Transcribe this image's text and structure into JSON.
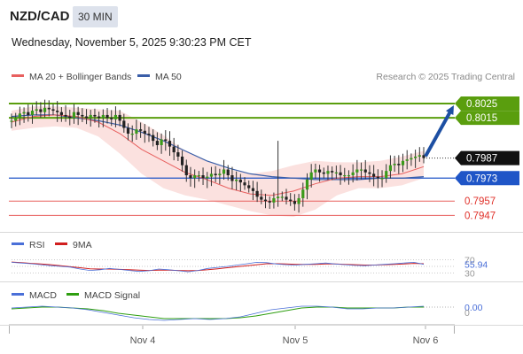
{
  "header": {
    "symbol": "NZD/CAD",
    "interval": "30 MIN",
    "datetime": "Wednesday, November 5, 2025 9:30:23 PM CET"
  },
  "legend": {
    "ma20_label": "MA 20 + Bollinger Bands",
    "ma50_label": "MA 50",
    "ma20_color": "#e8605f",
    "ma50_color": "#3a5ea8",
    "credit": "Research © 2025 Trading Central"
  },
  "rsi_panel": {
    "rsi_label": "RSI",
    "ma_label": "9MA",
    "rsi_color": "#4a6fd8",
    "ma_color": "#d11f1f",
    "value": "55.94",
    "levels": [
      "70",
      "30"
    ]
  },
  "macd_panel": {
    "macd_label": "MACD",
    "signal_label": "MACD Signal",
    "macd_color": "#4a6fd8",
    "signal_color": "#2e9e10",
    "value": "0.00",
    "zero": "0"
  },
  "levels": [
    {
      "price": "0.8025",
      "kind": "resistance",
      "color": "#5a9e0e"
    },
    {
      "price": "0.8015",
      "kind": "resistance",
      "color": "#5a9e0e"
    },
    {
      "price": "0.7987",
      "kind": "last",
      "color": "#111111"
    },
    {
      "price": "0.7973",
      "kind": "pivot",
      "color": "#1f55c7"
    },
    {
      "price": "0.7957",
      "kind": "support",
      "color": "#e8605f"
    },
    {
      "price": "0.7947",
      "kind": "support",
      "color": "#e8605f"
    }
  ],
  "x_axis": {
    "labels": [
      "Nov 4",
      "Nov 5",
      "Nov 6"
    ]
  },
  "chart_data": {
    "type": "candlestick",
    "price_range": [
      0.7938,
      0.8033
    ],
    "close_path": [
      0.8013,
      0.8015,
      0.8018,
      0.8019,
      0.8017,
      0.802,
      0.8021,
      0.8019,
      0.8022,
      0.8021,
      0.802,
      0.8019,
      0.8017,
      0.8016,
      0.8015,
      0.8019,
      0.8017,
      0.8016,
      0.8015,
      0.8017,
      0.8016,
      0.8015,
      0.8017,
      0.8015,
      0.8014,
      0.8017,
      0.8013,
      0.8008,
      0.8004,
      0.8004,
      0.8007,
      0.8006,
      0.8004,
      0.8003,
      0.7999,
      0.7996,
      0.8,
      0.7999,
      0.7995,
      0.7991,
      0.7988,
      0.7982,
      0.7975,
      0.7973,
      0.7975,
      0.7975,
      0.7973,
      0.7974,
      0.7976,
      0.7975,
      0.7976,
      0.7979,
      0.7975,
      0.7971,
      0.7972,
      0.797,
      0.7968,
      0.7966,
      0.7964,
      0.796,
      0.7958,
      0.7957,
      0.7956,
      0.7959,
      0.796,
      0.796,
      0.7958,
      0.7957,
      0.7955,
      0.7959,
      0.7965,
      0.7972,
      0.7977,
      0.7979,
      0.7977,
      0.7976,
      0.7978,
      0.7977,
      0.7977,
      0.7975,
      0.7975,
      0.7975,
      0.7977,
      0.7979,
      0.7979,
      0.7977,
      0.7976,
      0.7974,
      0.7973,
      0.7973,
      0.7978,
      0.7982,
      0.7983,
      0.7982,
      0.7985,
      0.7986,
      0.7987,
      0.7988,
      0.7989,
      0.7987
    ],
    "spike": {
      "index": 64,
      "high": 0.7999,
      "low": 0.7953
    },
    "ma20": [
      0.8012,
      0.8016,
      0.8017,
      0.8016,
      0.8012,
      0.8004,
      0.7993,
      0.7985,
      0.7977,
      0.7972,
      0.7966,
      0.7962,
      0.7961,
      0.7964,
      0.7969,
      0.7973,
      0.7974,
      0.7974,
      0.7976,
      0.7981
    ],
    "ma50": [
      0.8016,
      0.8017,
      0.8017,
      0.8015,
      0.8013,
      0.801,
      0.8005,
      0.7999,
      0.7992,
      0.7985,
      0.798,
      0.7976,
      0.7974,
      0.7973,
      0.7972,
      0.7972,
      0.7972,
      0.7973,
      0.7973,
      0.7974
    ],
    "bb_upper": [
      0.802,
      0.8023,
      0.8023,
      0.8022,
      0.8021,
      0.802,
      0.8012,
      0.8003,
      0.7992,
      0.7985,
      0.7979,
      0.7976,
      0.7978,
      0.7982,
      0.7985,
      0.7984,
      0.7984,
      0.7985,
      0.7988,
      0.7992
    ],
    "bb_lower": [
      0.8006,
      0.8008,
      0.8009,
      0.8008,
      0.8002,
      0.799,
      0.7976,
      0.7966,
      0.7961,
      0.7958,
      0.7954,
      0.795,
      0.7947,
      0.7946,
      0.7951,
      0.7961,
      0.7966,
      0.7966,
      0.7968,
      0.7973
    ],
    "rsi": [
      62,
      60,
      58,
      55,
      52,
      50,
      48,
      42,
      38,
      40,
      44,
      41,
      38,
      35,
      37,
      42,
      40,
      37,
      34,
      38,
      44,
      47,
      50,
      54,
      58,
      62,
      61,
      57,
      55,
      54,
      56,
      58,
      60,
      57,
      55,
      53,
      52,
      54,
      56,
      58,
      60,
      62,
      56
    ],
    "rsi_ma": [
      63,
      61,
      59,
      57,
      55,
      52,
      49,
      46,
      43,
      42,
      42,
      41,
      40,
      39,
      38,
      39,
      39,
      38,
      37,
      38,
      40,
      43,
      46,
      49,
      52,
      55,
      58,
      58,
      57,
      56,
      56,
      56,
      57,
      57,
      56,
      55,
      54,
      54,
      55,
      56,
      57,
      59,
      58
    ],
    "rsi_range": [
      0,
      100
    ],
    "macd": [
      0.0002,
      0.0003,
      0.0004,
      0.0003,
      0.0002,
      0.0,
      -0.0003,
      -0.0006,
      -0.0009,
      -0.0011,
      -0.0012,
      -0.0011,
      -0.001,
      -0.0011,
      -0.001,
      -0.0008,
      -0.0004,
      0.0,
      0.0002,
      0.0004,
      0.0004,
      0.0003,
      0.0001,
      0.0001,
      0.0002,
      0.0002,
      0.0003,
      0.0004
    ],
    "macd_signal": [
      0.0001,
      0.0002,
      0.0003,
      0.0003,
      0.0002,
      0.0001,
      -0.0001,
      -0.0004,
      -0.0006,
      -0.0008,
      -0.001,
      -0.001,
      -0.001,
      -0.001,
      -0.001,
      -0.0009,
      -0.0007,
      -0.0004,
      -0.0001,
      0.0002,
      0.0003,
      0.0003,
      0.0002,
      0.0002,
      0.0002,
      0.0002,
      0.0003,
      0.0003
    ],
    "macd_range": [
      -0.0016,
      0.001
    ],
    "forecast": {
      "from": 0.7987,
      "to": 0.8025
    }
  }
}
